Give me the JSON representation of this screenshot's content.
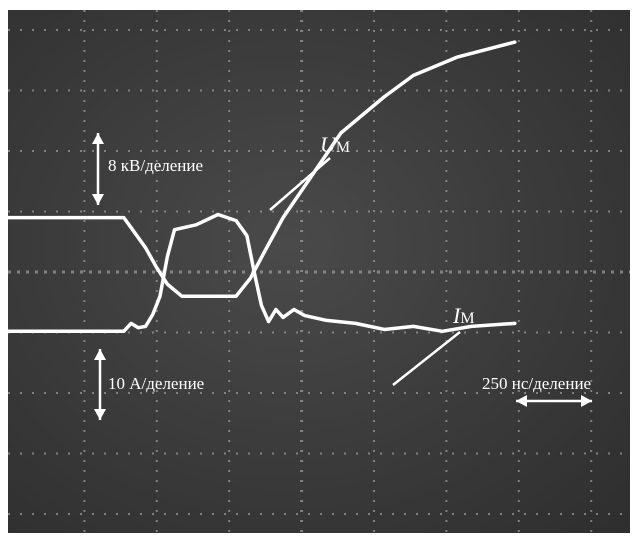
{
  "chart_data": {
    "type": "line",
    "series": [
      {
        "name": "U",
        "subscript": "М",
        "points": [
          [
            0,
            0.9
          ],
          [
            1.6,
            0.9
          ],
          [
            1.9,
            0.4
          ],
          [
            2.05,
            0.08
          ],
          [
            2.2,
            -0.2
          ],
          [
            2.4,
            -0.4
          ],
          [
            2.8,
            -0.4
          ],
          [
            3.15,
            -0.4
          ],
          [
            3.35,
            -0.1
          ],
          [
            3.55,
            0.35
          ],
          [
            3.8,
            0.9
          ],
          [
            4.2,
            1.6
          ],
          [
            4.6,
            2.3
          ],
          [
            5.2,
            2.9
          ],
          [
            5.6,
            3.25
          ],
          [
            6.2,
            3.55
          ],
          [
            7.0,
            3.8
          ]
        ]
      },
      {
        "name": "I",
        "subscript": "М",
        "points": [
          [
            0,
            -0.98
          ],
          [
            1.6,
            -0.98
          ],
          [
            1.7,
            -0.85
          ],
          [
            1.8,
            -0.92
          ],
          [
            1.9,
            -0.9
          ],
          [
            2.0,
            -0.7
          ],
          [
            2.1,
            -0.4
          ],
          [
            2.2,
            0.25
          ],
          [
            2.3,
            0.7
          ],
          [
            2.6,
            0.78
          ],
          [
            2.9,
            0.95
          ],
          [
            3.15,
            0.85
          ],
          [
            3.3,
            0.6
          ],
          [
            3.4,
            0.0
          ],
          [
            3.5,
            -0.55
          ],
          [
            3.6,
            -0.82
          ],
          [
            3.7,
            -0.62
          ],
          [
            3.8,
            -0.75
          ],
          [
            3.95,
            -0.62
          ],
          [
            4.1,
            -0.72
          ],
          [
            4.4,
            -0.8
          ],
          [
            4.8,
            -0.85
          ],
          [
            5.2,
            -0.95
          ],
          [
            5.6,
            -0.9
          ],
          [
            6.0,
            -0.98
          ],
          [
            6.4,
            -0.9
          ],
          [
            7.0,
            -0.85
          ]
        ]
      }
    ],
    "annotations": {
      "voltage_scale": "8 кВ/деление",
      "current_scale": "10 А/деление",
      "time_scale": "250 нс/деление"
    },
    "grid": true,
    "colors": {
      "screen": "#3a3a3a",
      "trace": "#ffffff",
      "grid": "#a0a0a0"
    }
  }
}
